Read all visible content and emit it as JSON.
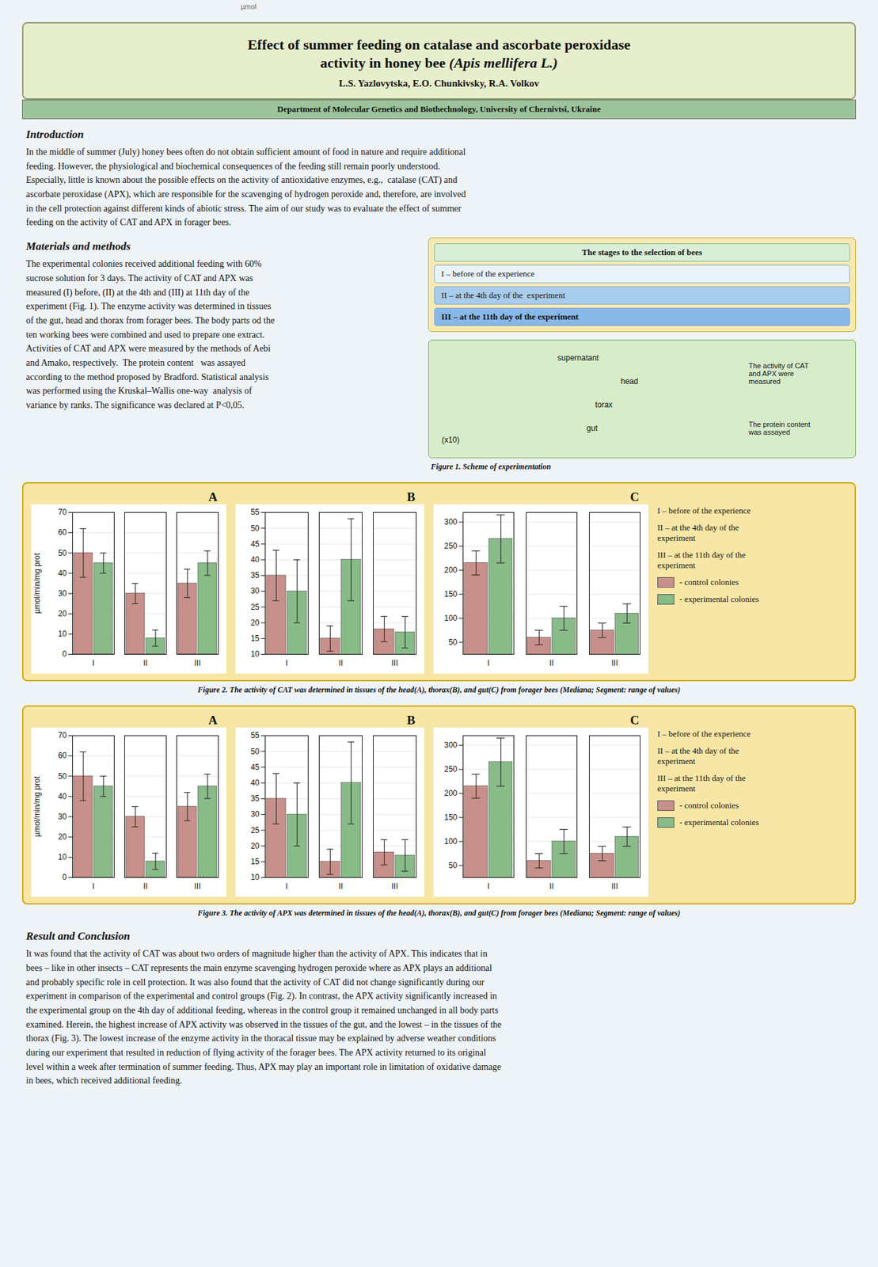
{
  "title": [
    "Effect of summer feeding on catalase and ascorbate peroxidase",
    "activity in honey bee ",
    "(Apis mellifera L.)"
  ],
  "subtitle": [
    "L.S. Yazlovytska, E.O. Chunkivsky, R.A. Volkov",
    "Department of Molecular Genetics and Biothechnology,  University of Chernivtsi, Ukraine"
  ],
  "annotations": [
    {
      "title": "Introduction",
      "text": "In the middle of summer (July) honey bees often do not obtain sufficient amount of food in nature and require additional\nfeeding. However, the physiological and biochemical consequences of the feeding still remain poorly understood.\nEspecially, little is known about the possible effects on the activity of antioxidative enzymes, e.g.,  catalase (CAT) and\nascorbate peroxidase (APX), which are responsible for the scavenging of hydrogen peroxide and, therefore, are involved\nin the cell protection against different kinds of abiotic stress. The aim of our study was to evaluate the effect of summer\nfeeding on the activity of CAT and APX in forager bees."
    },
    {
      "title": "Materials and methods",
      "text": "The experimental colonies received additional feeding with 60%\nsucrose solution for 3 days. The activity of CAT and APX was\nmeasured (I) before, (II) at the 4th and (III) at 11th day of the\nexperiment (Fig. 1). The enzyme activity was determined in tissues\nof the gut, head and thorax from forager bees. The body parts od the\nten working bees were combined and used to prepare one extract.\nActivities of CAT and APX were measured by the methods of Aebi\nand Amako, respectively.  The protein content   was assayed\naccording to the method proposed by Bradford. Statistical analysis\nwas performed using the Kruskal–Wallis one-way  analysis of\nvariance by ranks. The significance was declared at P<0,05."
    },
    {
      "title": "The stages to the selection of bees",
      "text": [
        "I – before of the experience",
        "II – at the 4th day of the  experiment",
        "III – at the 11th day of the experiment"
      ]
    },
    {
      "title": "Figure 1. Scheme of experimentation",
      "text": [
        "supernatant",
        "head",
        "torax",
        "gut",
        "(x10)",
        "The activity of CAT\nand APX were\nmeasured",
        "The protein content\nwas assayed"
      ]
    },
    {
      "title": "Result and Conclusion",
      "text": "It was found that the activity of CAT was about two orders of magnitude higher than the activity of APX. This indicates that in\nbees – like in other insects – CAT represents the main enzyme scavenging hydrogen peroxide where as APX plays an additional\nand probably specific role in cell protection. It was also found that the activity of CAT did not change significantly during our\nexperiment in comparison of the experimental and control groups (Fig. 2). In contrast, the APX activity significantly increased in\nthe experimental group on the 4th day of additional feeding, whereas in the control group it remained unchanged in all body parts\nexamined. Herein, the highest increase of APX activity was observed in the tissues of the gut, and the lowest – in the tissues of the\nthorax (Fig. 3). The lowest increase of the enzyme activity in the thoracal tissue may be explained by adverse weather conditions\nduring our experiment that resulted in reduction of flying activity of the forager bees. The APX activity returned to its original\nlevel within a week after termination of summer feeding. Thus, APX may play an important role in limitation of oxidative damage\nin bees, which received additional feeding."
    },
    {
      "text": "µmol"
    }
  ],
  "chart_data": [
    {
      "type": "bar",
      "categories": [
        "I",
        "II",
        "III"
      ],
      "series": [
        {
          "name": "- control colonies",
          "color": "#c8908a",
          "values": [
            50,
            30,
            35
          ],
          "errors": [
            12,
            5,
            7
          ]
        },
        {
          "name": "- experimental colonies",
          "color": "#88bb88",
          "values": [
            45,
            8,
            45
          ],
          "errors": [
            5,
            4,
            6
          ]
        }
      ],
      "ylabel": "µmol/min/mg prot",
      "ylim": [
        0,
        70
      ],
      "yticks": [
        0,
        10,
        20,
        30,
        40,
        50,
        60,
        70
      ],
      "grid": true,
      "annotations": [
        "A"
      ],
      "caption": "Figure 2. The activity of CAT was determined in tissues of the head(A), thorax(B),  and gut(C) from forager bees (Mediana; Segment: range of values)"
    },
    {
      "type": "bar",
      "categories": [
        "I",
        "II",
        "III"
      ],
      "series": [
        {
          "name": "- control colonies",
          "color": "#c8908a",
          "values": [
            35,
            15,
            18
          ],
          "errors": [
            8,
            4,
            4
          ]
        },
        {
          "name": "- experimental colonies",
          "color": "#88bb88",
          "values": [
            30,
            40,
            17
          ],
          "errors": [
            10,
            13,
            5
          ]
        }
      ],
      "ylim": [
        10,
        55
      ],
      "yticks": [
        10,
        15,
        20,
        25,
        30,
        35,
        40,
        45,
        50,
        55
      ],
      "grid": true,
      "annotations": [
        "B"
      ]
    },
    {
      "type": "bar",
      "categories": [
        "I",
        "II",
        "III"
      ],
      "series": [
        {
          "name": "- control colonies",
          "color": "#c8908a",
          "values": [
            215,
            60,
            75
          ],
          "errors": [
            25,
            15,
            15
          ]
        },
        {
          "name": "- experimental colonies",
          "color": "#88bb88",
          "values": [
            265,
            100,
            110
          ],
          "errors": [
            50,
            25,
            20
          ]
        }
      ],
      "ylim": [
        25,
        320
      ],
      "yticks": [
        50,
        100,
        150,
        200,
        250,
        300
      ],
      "grid": true,
      "annotations": [
        "C"
      ],
      "legend": "right",
      "category_notes": [
        "I – before of the experience",
        "II – at the 4th day of the\nexperiment",
        "III – at the 11th day of the\nexperiment"
      ]
    },
    {
      "type": "bar",
      "categories": [
        "I",
        "II",
        "III"
      ],
      "series": [
        {
          "name": "- control colonies",
          "color": "#c8908a",
          "values": [
            50,
            30,
            35
          ],
          "errors": [
            12,
            5,
            7
          ]
        },
        {
          "name": "- experimental colonies",
          "color": "#88bb88",
          "values": [
            45,
            8,
            45
          ],
          "errors": [
            5,
            4,
            6
          ]
        }
      ],
      "ylabel": "µmol/min/mg prot",
      "ylim": [
        0,
        70
      ],
      "yticks": [
        0,
        10,
        20,
        30,
        40,
        50,
        60,
        70
      ],
      "grid": true,
      "annotations": [
        "A"
      ],
      "caption": "Figure 3. The activity of APX was determined in tissues of the head(A), thorax(B),  and gut(C) from forager bees (Mediana; Segment: range of values)"
    },
    {
      "type": "bar",
      "categories": [
        "I",
        "II",
        "III"
      ],
      "series": [
        {
          "name": "- control colonies",
          "color": "#c8908a",
          "values": [
            35,
            15,
            18
          ],
          "errors": [
            8,
            4,
            4
          ]
        },
        {
          "name": "- experimental colonies",
          "color": "#88bb88",
          "values": [
            30,
            40,
            17
          ],
          "errors": [
            10,
            13,
            5
          ]
        }
      ],
      "ylim": [
        10,
        55
      ],
      "yticks": [
        10,
        15,
        20,
        25,
        30,
        35,
        40,
        45,
        50,
        55
      ],
      "grid": true,
      "annotations": [
        "B"
      ]
    },
    {
      "type": "bar",
      "categories": [
        "I",
        "II",
        "III"
      ],
      "series": [
        {
          "name": "- control colonies",
          "color": "#c8908a",
          "values": [
            215,
            60,
            75
          ],
          "errors": [
            25,
            15,
            15
          ]
        },
        {
          "name": "- experimental colonies",
          "color": "#88bb88",
          "values": [
            265,
            100,
            110
          ],
          "errors": [
            50,
            25,
            20
          ]
        }
      ],
      "ylim": [
        25,
        320
      ],
      "yticks": [
        50,
        100,
        150,
        200,
        250,
        300
      ],
      "grid": true,
      "annotations": [
        "C"
      ],
      "legend": "right",
      "category_notes": [
        "I – before of the experience",
        "II – at the 4th day of the\nexperiment",
        "III – at the 11th day of the\nexperiment"
      ]
    }
  ]
}
